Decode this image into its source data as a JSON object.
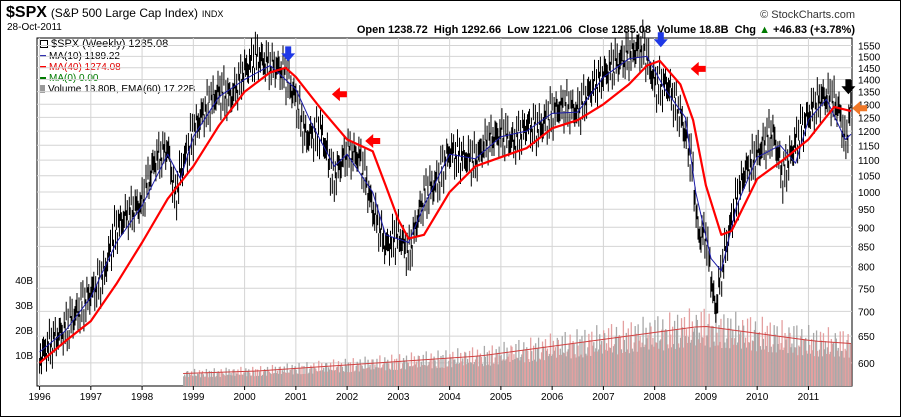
{
  "header": {
    "symbol": "$SPX",
    "name": "(S&P 500 Large Cap Index)",
    "exchange": "INDX",
    "date": "28-Oct-2011",
    "credit": "© StockCharts.com"
  },
  "quote": {
    "open_label": "Open",
    "open": "1238.72",
    "high_label": "High",
    "high": "1292.66",
    "low_label": "Low",
    "low": "1221.06",
    "close_label": "Close",
    "close": "1285.08",
    "volume_label": "Volume",
    "volume": "18.8B",
    "chg_label": "Chg",
    "chg": "+46.83 (+3.78%)",
    "chg_arrow": "▲"
  },
  "legend": {
    "price": "$SPX (Weekly) 1285.08",
    "ma10": "MA(10) 1189.22",
    "ma40": "MA(40) 1274.08",
    "ma0": "MA(0) 0.00",
    "volume": "Volume 18.80B, EMA(60) 17.22B"
  },
  "colors": {
    "price": "#000000",
    "ma10": "#1a1aa8",
    "ma40": "#ff0000",
    "ma0": "#007a00",
    "volume": "#a8a8a8",
    "arrow_down_blue": "#1e38e6",
    "arrow_red": "#ff0000",
    "arrow_black": "#000000",
    "arrow_orange": "#f07828",
    "grid": "#d4d4d4"
  },
  "chart_data": {
    "type": "line",
    "scale": "log",
    "x_ticks": [
      "1996",
      "1997",
      "1998",
      "1999",
      "2000",
      "2001",
      "2002",
      "2003",
      "2004",
      "2005",
      "2006",
      "2007",
      "2008",
      "2009",
      "2010",
      "2011"
    ],
    "y_ticks": [
      600,
      650,
      700,
      750,
      800,
      850,
      900,
      950,
      1000,
      1050,
      1100,
      1150,
      1200,
      1250,
      1300,
      1350,
      1400,
      1450,
      1500,
      1550
    ],
    "ylim": [
      560,
      1585
    ],
    "xlim": [
      1995.95,
      2011.85
    ],
    "volume_ticks": [
      "10B",
      "20B",
      "30B",
      "40B"
    ],
    "series": [
      {
        "name": "$SPX (Weekly)",
        "x": [
          1996.0,
          1996.25,
          1996.5,
          1996.75,
          1997.0,
          1997.25,
          1997.5,
          1997.75,
          1998.0,
          1998.25,
          1998.5,
          1998.65,
          1998.75,
          1999.0,
          1999.25,
          1999.5,
          1999.75,
          2000.0,
          2000.25,
          2000.5,
          2000.75,
          2001.0,
          2001.2,
          2001.5,
          2001.72,
          2002.0,
          2002.25,
          2002.5,
          2002.75,
          2003.0,
          2003.2,
          2003.5,
          2003.75,
          2004.0,
          2004.25,
          2004.5,
          2004.75,
          2005.0,
          2005.25,
          2005.5,
          2005.75,
          2006.0,
          2006.25,
          2006.5,
          2006.75,
          2007.0,
          2007.25,
          2007.5,
          2007.78,
          2008.0,
          2008.25,
          2008.5,
          2008.72,
          2008.85,
          2009.0,
          2009.18,
          2009.5,
          2009.75,
          2010.0,
          2010.3,
          2010.5,
          2010.75,
          2011.0,
          2011.25,
          2011.45,
          2011.6,
          2011.72,
          2011.83
        ],
        "y": [
          610,
          640,
          665,
          700,
          740,
          780,
          900,
          940,
          970,
          1100,
          1140,
          980,
          1060,
          1200,
          1290,
          1350,
          1330,
          1440,
          1500,
          1460,
          1440,
          1320,
          1180,
          1200,
          1040,
          1130,
          1110,
          950,
          850,
          880,
          830,
          990,
          1030,
          1130,
          1110,
          1100,
          1170,
          1190,
          1160,
          1220,
          1210,
          1270,
          1300,
          1270,
          1360,
          1420,
          1470,
          1510,
          1550,
          1380,
          1380,
          1260,
          1100,
          880,
          880,
          700,
          920,
          1060,
          1120,
          1200,
          1050,
          1160,
          1260,
          1330,
          1320,
          1280,
          1150,
          1285
        ]
      },
      {
        "name": "MA(10)",
        "x": [
          1996.0,
          1996.5,
          1997.0,
          1997.5,
          1998.0,
          1998.5,
          1998.75,
          1999.0,
          1999.5,
          2000.0,
          2000.5,
          2001.0,
          2001.3,
          2001.75,
          2002.0,
          2002.5,
          2002.75,
          2003.2,
          2003.5,
          2004.0,
          2004.5,
          2005.0,
          2005.5,
          2006.0,
          2006.5,
          2007.0,
          2007.5,
          2007.85,
          2008.2,
          2008.6,
          2008.8,
          2009.1,
          2009.3,
          2009.6,
          2010.0,
          2010.45,
          2010.75,
          2011.0,
          2011.35,
          2011.72,
          2011.83
        ],
        "y": [
          620,
          660,
          730,
          860,
          960,
          1120,
          1040,
          1180,
          1330,
          1400,
          1460,
          1360,
          1230,
          1080,
          1120,
          1000,
          880,
          860,
          960,
          1120,
          1105,
          1180,
          1200,
          1265,
          1270,
          1410,
          1490,
          1500,
          1360,
          1250,
          1000,
          820,
          790,
          960,
          1110,
          1150,
          1090,
          1240,
          1320,
          1170,
          1189
        ]
      },
      {
        "name": "MA(40)",
        "x": [
          1996.0,
          1996.5,
          1997.0,
          1997.5,
          1998.0,
          1998.5,
          1999.0,
          1999.5,
          2000.0,
          2000.5,
          2000.8,
          2001.0,
          2001.5,
          2002.0,
          2002.5,
          2002.75,
          2003.0,
          2003.2,
          2003.5,
          2004.0,
          2004.5,
          2005.0,
          2005.5,
          2006.0,
          2006.5,
          2007.0,
          2007.5,
          2007.85,
          2008.1,
          2008.5,
          2008.75,
          2009.0,
          2009.3,
          2009.5,
          2010.0,
          2010.5,
          2011.0,
          2011.5,
          2011.83
        ],
        "y": [
          600,
          640,
          680,
          760,
          860,
          980,
          1080,
          1220,
          1350,
          1430,
          1450,
          1410,
          1280,
          1170,
          1130,
          1020,
          920,
          870,
          880,
          1000,
          1080,
          1110,
          1140,
          1210,
          1240,
          1300,
          1380,
          1460,
          1480,
          1380,
          1240,
          1020,
          880,
          890,
          1040,
          1100,
          1170,
          1290,
          1274
        ]
      }
    ],
    "volume": {
      "start_year": 1998.8,
      "end_year": 2011.83,
      "level_b": [
        5,
        5.5,
        6,
        7,
        8,
        9,
        10,
        11,
        12,
        14,
        16,
        18,
        20,
        22,
        24,
        22,
        20,
        18,
        17
      ]
    },
    "markers": [
      {
        "type": "arrow-down",
        "color": "blue",
        "x": 2000.85,
        "y": 1500
      },
      {
        "type": "arrow-left",
        "color": "red",
        "x": 2001.8,
        "y": 1340
      },
      {
        "type": "arrow-left",
        "color": "red",
        "x": 2002.45,
        "y": 1165
      },
      {
        "type": "arrow-down",
        "color": "blue",
        "x": 2008.12,
        "y": 1565
      },
      {
        "type": "arrow-left",
        "color": "red",
        "x": 2008.8,
        "y": 1445
      },
      {
        "type": "arrow-down",
        "color": "black",
        "x": 2011.78,
        "y": 1360
      },
      {
        "type": "arrow-left",
        "color": "orange",
        "x": 2011.95,
        "y": 1285
      }
    ]
  }
}
